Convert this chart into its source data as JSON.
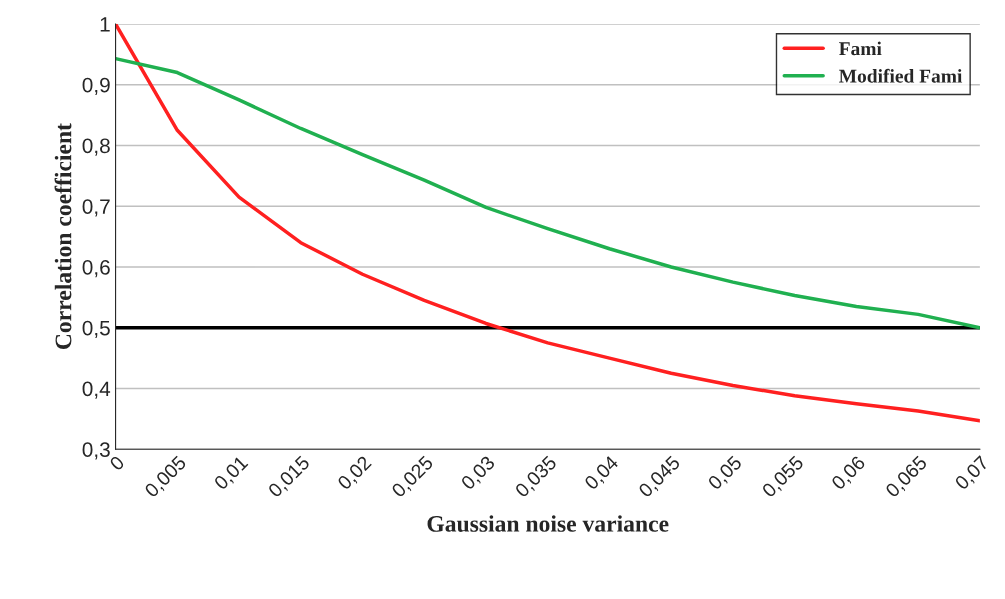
{
  "chart_data": {
    "type": "line",
    "xlabel": "Gaussian noise variance",
    "ylabel": "Correlation coefficient",
    "categories": [
      "0",
      "0,005",
      "0,01",
      "0,015",
      "0,02",
      "0,025",
      "0,03",
      "0,035",
      "0,04",
      "0,045",
      "0,05",
      "0,055",
      "0,06",
      "0,065",
      "0,07"
    ],
    "series": [
      {
        "name": "Fami",
        "color": "#ff2020",
        "values": [
          1.0,
          0.825,
          0.715,
          0.64,
          0.588,
          0.545,
          0.507,
          0.475,
          0.45,
          0.425,
          0.405,
          0.388,
          0.375,
          0.363,
          0.347
        ]
      },
      {
        "name": "Modified Fami",
        "color": "#20b050",
        "values": [
          0.943,
          0.92,
          0.875,
          0.828,
          0.785,
          0.743,
          0.698,
          0.663,
          0.63,
          0.6,
          0.575,
          0.553,
          0.535,
          0.522,
          0.5
        ]
      }
    ],
    "ylim": [
      0.3,
      1.0
    ],
    "yticks": [
      {
        "value": 0.3,
        "label": "0,3"
      },
      {
        "value": 0.4,
        "label": "0,4"
      },
      {
        "value": 0.5,
        "label": "0,5"
      },
      {
        "value": 0.6,
        "label": "0,6"
      },
      {
        "value": 0.7,
        "label": "0,7"
      },
      {
        "value": 0.8,
        "label": "0,8"
      },
      {
        "value": 0.9,
        "label": "0,9"
      },
      {
        "value": 1.0,
        "label": "1"
      }
    ],
    "ref_lines": [
      {
        "axis": "y",
        "value": 0.5,
        "color": "#000000"
      }
    ],
    "grid": "y",
    "legend": "top right",
    "marker": "none",
    "line_style": "solid"
  }
}
